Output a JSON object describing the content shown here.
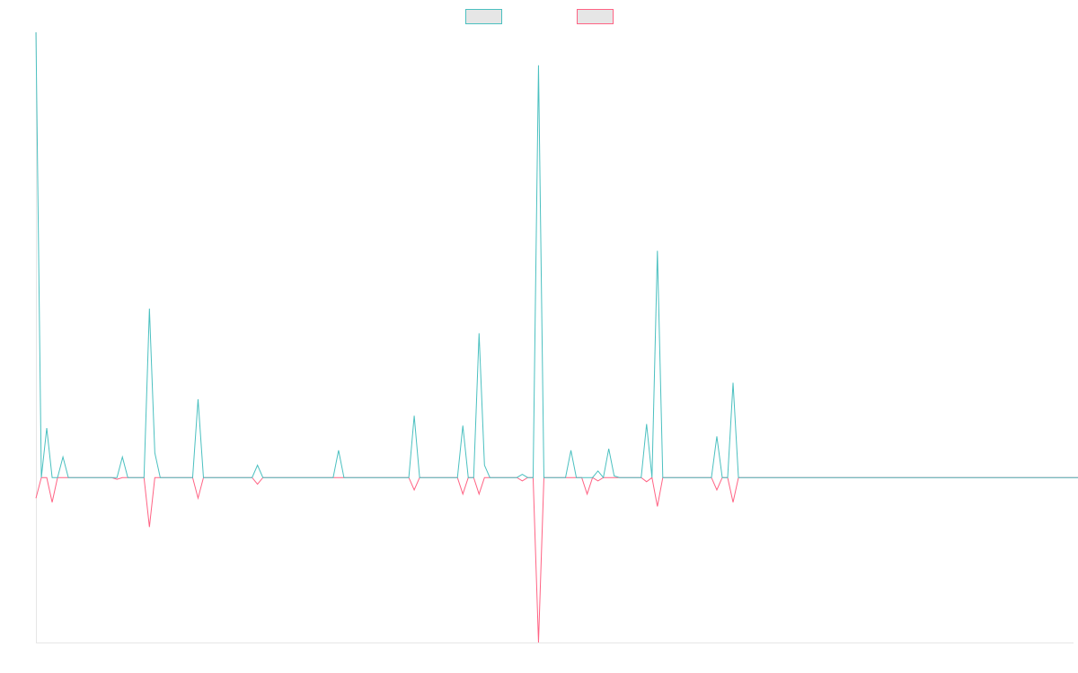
{
  "chart_data": {
    "type": "line",
    "title": "",
    "xlabel": "",
    "ylabel": "",
    "grid": false,
    "legend": "top-center",
    "ylim": [
      -20,
      54
    ],
    "xlim": [
      0,
      192
    ],
    "series": [
      {
        "key": "teal",
        "color": "#4bc0c0",
        "values": [
          54,
          0,
          6,
          0,
          0,
          2.5,
          0,
          0,
          0,
          0,
          0,
          0,
          0,
          0,
          0,
          0,
          2.5,
          0,
          0,
          0,
          0,
          20.5,
          3,
          0,
          0,
          0,
          0,
          0,
          0,
          0,
          9.5,
          0,
          0,
          0,
          0,
          0,
          0,
          0,
          0,
          0,
          0,
          1.5,
          0,
          0,
          0,
          0,
          0,
          0,
          0,
          0,
          0,
          0,
          0,
          0,
          0,
          0,
          3.3,
          0,
          0,
          0,
          0,
          0,
          0,
          0,
          0,
          0,
          0,
          0,
          0,
          0,
          7.5,
          0,
          0,
          0,
          0,
          0,
          0,
          0,
          0,
          6.3,
          0,
          0,
          17.5,
          1.5,
          0,
          0,
          0,
          0,
          0,
          0,
          0.4,
          0,
          0,
          50,
          0,
          0,
          0,
          0,
          0,
          3.3,
          0,
          0,
          0,
          0,
          0.8,
          0,
          3.5,
          0.2,
          0,
          0,
          0,
          0,
          0,
          6.5,
          0,
          27.5,
          0,
          0,
          0,
          0,
          0,
          0,
          0,
          0,
          0,
          0,
          5,
          0,
          0,
          11.5,
          0,
          0,
          0,
          0,
          0,
          0,
          0,
          0,
          0,
          0,
          0,
          0,
          0,
          0,
          0,
          0,
          0,
          0,
          0,
          0,
          0,
          0,
          0,
          0,
          0,
          0,
          0,
          0,
          0,
          0,
          0,
          0,
          0,
          0,
          0,
          0,
          0,
          0,
          0,
          0,
          0,
          0,
          0,
          0,
          0,
          0,
          0,
          0,
          0,
          0,
          0,
          0,
          0,
          0,
          0,
          0,
          0,
          0,
          0,
          0,
          0,
          0,
          0,
          0,
          0,
          0,
          0,
          0,
          0,
          0
        ]
      },
      {
        "key": "pink",
        "color": "#ff6384",
        "values": [
          -2.5,
          0,
          0,
          -3,
          0,
          0,
          0,
          0,
          0,
          0,
          0,
          0,
          0,
          0,
          0,
          -0.2,
          0,
          0,
          0,
          0,
          0,
          -6,
          0,
          0,
          0,
          0,
          0,
          0,
          0,
          0,
          -2.5,
          0,
          0,
          0,
          0,
          0,
          0,
          0,
          0,
          0,
          0,
          -0.8,
          0,
          0,
          0,
          0,
          0,
          0,
          0,
          0,
          0,
          0,
          0,
          0,
          0,
          0,
          0,
          0,
          0,
          0,
          0,
          0,
          0,
          0,
          0,
          0,
          0,
          0,
          0,
          0,
          -1.5,
          0,
          0,
          0,
          0,
          0,
          0,
          0,
          0,
          -2,
          0,
          0,
          -2,
          0,
          0,
          0,
          0,
          0,
          0,
          0,
          -0.4,
          0,
          0,
          -20,
          0,
          0,
          0,
          0,
          0,
          0,
          0,
          0,
          -2,
          0,
          -0.4,
          0,
          0,
          0,
          0,
          0,
          0,
          0,
          0,
          -0.5,
          0,
          -3.5,
          0,
          0,
          0,
          0,
          0,
          0,
          0,
          0,
          0,
          0,
          -1.5,
          0,
          0,
          -3,
          0,
          0,
          0,
          0,
          0,
          0,
          0,
          0,
          0,
          0,
          0,
          0,
          0,
          0,
          0,
          0,
          0,
          0,
          0,
          0,
          0,
          0,
          0,
          0,
          0,
          0,
          0,
          0,
          0,
          0,
          0,
          0,
          0,
          0,
          0,
          0,
          0,
          0,
          0,
          0,
          0,
          0,
          0,
          0,
          0,
          0,
          0,
          0,
          0,
          0,
          0,
          0,
          0,
          0,
          0,
          0,
          0,
          0,
          0,
          0,
          0,
          0,
          0,
          0,
          0,
          0,
          0,
          0,
          0,
          0,
          0,
          0
        ]
      }
    ]
  }
}
